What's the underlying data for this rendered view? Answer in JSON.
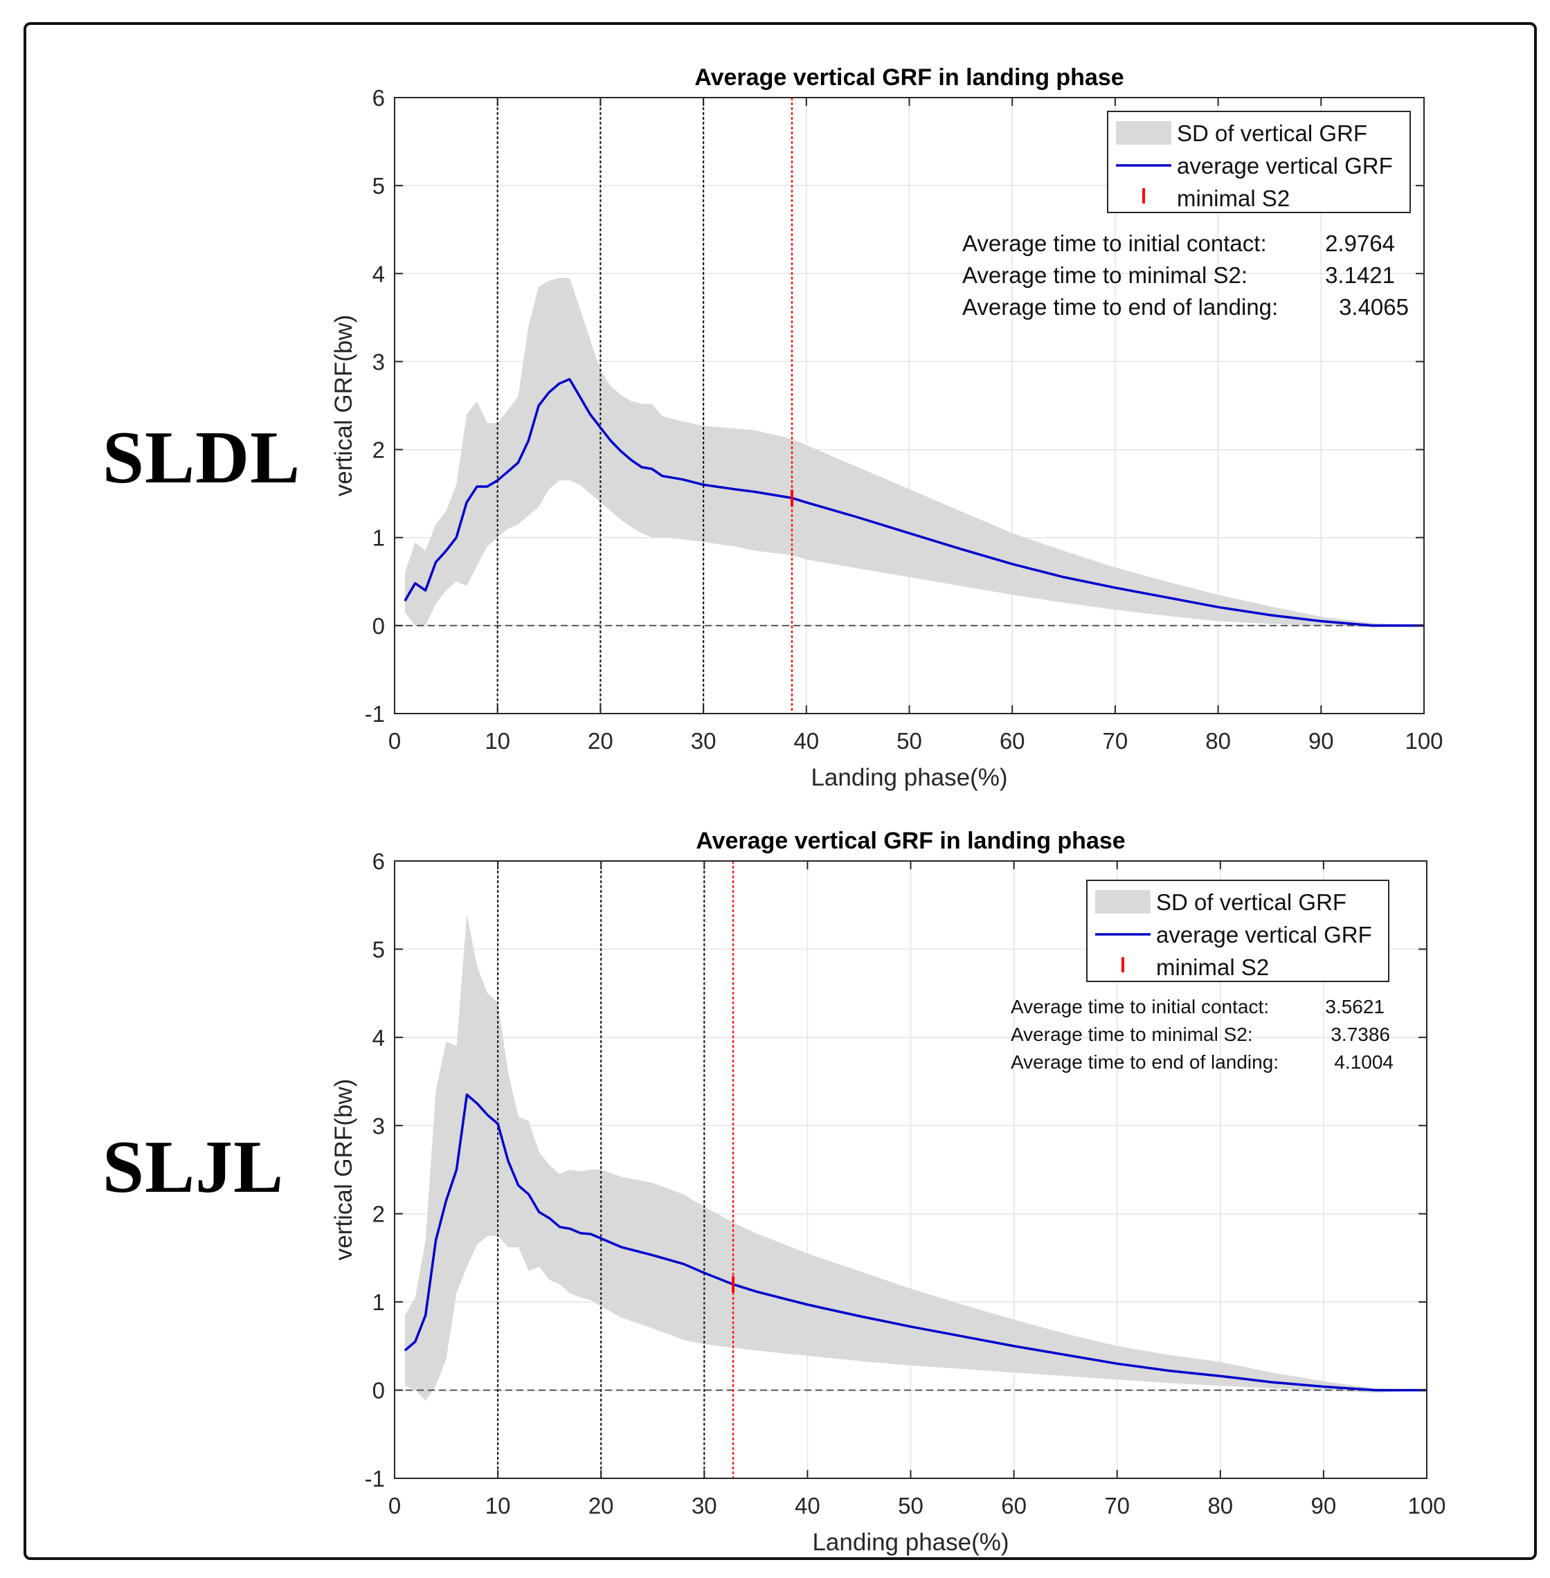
{
  "chart_data": [
    {
      "type": "area-line",
      "panel_label": "SLDL",
      "title": "Average vertical GRF in landing phase",
      "xlabel": "Landing phase(%)",
      "ylabel": "vertical GRF(bw)",
      "xlim": [
        0,
        100
      ],
      "ylim": [
        -1,
        6
      ],
      "xticks": [
        0,
        10,
        20,
        30,
        40,
        50,
        60,
        70,
        80,
        90,
        100
      ],
      "yticks": [
        -1,
        0,
        1,
        2,
        3,
        4,
        5,
        6
      ],
      "grid": true,
      "legend": {
        "position": "top-right",
        "entries": [
          "SD of vertical GRF",
          "average vertical GRF",
          "minimal S2"
        ]
      },
      "annotations": [
        {
          "label": "Average time to initial contact:",
          "value": "2.9764"
        },
        {
          "label": "Average time to minimal S2:",
          "value": "3.1421"
        },
        {
          "label": "Average time to end of landing:",
          "value": "3.4065"
        }
      ],
      "phase_lines": [
        10,
        20,
        30
      ],
      "minimal_s2": 38.6,
      "zero_line": 0,
      "series": [
        {
          "name": "average vertical GRF",
          "color": "#0000cc",
          "x": [
            1,
            2,
            3,
            4,
            5,
            6,
            7,
            8,
            9,
            10,
            11,
            12,
            13,
            14,
            15,
            16,
            17,
            18,
            19,
            20,
            21,
            22,
            23,
            24,
            25,
            26,
            28,
            30,
            33,
            35,
            38.6,
            40,
            45,
            50,
            55,
            60,
            65,
            70,
            75,
            80,
            85,
            90,
            95,
            100
          ],
          "y": [
            0.28,
            0.48,
            0.4,
            0.72,
            0.85,
            1.0,
            1.4,
            1.58,
            1.58,
            1.65,
            1.75,
            1.85,
            2.1,
            2.5,
            2.65,
            2.75,
            2.8,
            2.6,
            2.4,
            2.25,
            2.1,
            1.98,
            1.88,
            1.8,
            1.78,
            1.7,
            1.66,
            1.6,
            1.55,
            1.52,
            1.45,
            1.4,
            1.23,
            1.05,
            0.87,
            0.7,
            0.55,
            0.43,
            0.32,
            0.21,
            0.12,
            0.05,
            0.0,
            0.0
          ]
        },
        {
          "name": "SD of vertical GRF",
          "color": "#d9d9d9",
          "x": [
            1,
            2,
            3,
            4,
            5,
            6,
            7,
            8,
            9,
            10,
            11,
            12,
            13,
            14,
            15,
            16,
            17,
            18,
            19,
            20,
            21,
            22,
            23,
            24,
            25,
            26,
            28,
            30,
            33,
            35,
            38.6,
            40,
            45,
            50,
            55,
            60,
            65,
            70,
            75,
            80,
            85,
            90,
            95,
            100
          ],
          "upper": [
            0.6,
            0.95,
            0.85,
            1.15,
            1.3,
            1.6,
            2.4,
            2.55,
            2.3,
            2.3,
            2.45,
            2.6,
            3.4,
            3.85,
            3.92,
            3.95,
            3.95,
            3.6,
            3.25,
            2.9,
            2.72,
            2.62,
            2.55,
            2.52,
            2.52,
            2.38,
            2.32,
            2.27,
            2.24,
            2.22,
            2.12,
            2.05,
            1.8,
            1.55,
            1.3,
            1.05,
            0.85,
            0.66,
            0.5,
            0.35,
            0.22,
            0.1,
            0.03,
            0.0
          ],
          "lower": [
            0.15,
            0.0,
            0.0,
            0.25,
            0.4,
            0.5,
            0.45,
            0.68,
            0.9,
            1.0,
            1.1,
            1.15,
            1.25,
            1.35,
            1.55,
            1.65,
            1.65,
            1.6,
            1.5,
            1.4,
            1.3,
            1.2,
            1.12,
            1.05,
            1.0,
            1.0,
            0.98,
            0.95,
            0.9,
            0.85,
            0.8,
            0.75,
            0.65,
            0.55,
            0.45,
            0.35,
            0.26,
            0.18,
            0.11,
            0.05,
            0.02,
            0.0,
            -0.02,
            0.0
          ]
        }
      ]
    },
    {
      "type": "area-line",
      "panel_label": "SLJL",
      "title": "Average vertical GRF in landing phase",
      "xlabel": "Landing phase(%)",
      "ylabel": "vertical GRF(bw)",
      "xlim": [
        0,
        100
      ],
      "ylim": [
        -1,
        6
      ],
      "xticks": [
        0,
        10,
        20,
        30,
        40,
        50,
        60,
        70,
        80,
        90,
        100
      ],
      "yticks": [
        -1,
        0,
        1,
        2,
        3,
        4,
        5,
        6
      ],
      "grid": true,
      "legend": {
        "position": "top-right",
        "entries": [
          "SD of vertical GRF",
          "average vertical GRF",
          "minimal S2"
        ]
      },
      "annotations": [
        {
          "label": "Average time to initial contact:",
          "value": "3.5621"
        },
        {
          "label": "Average time to minimal S2:",
          "value": "3.7386"
        },
        {
          "label": "Average time to end of landing:",
          "value": "4.1004"
        }
      ],
      "phase_lines": [
        10,
        20,
        30
      ],
      "minimal_s2": 32.8,
      "zero_line": 0,
      "series": [
        {
          "name": "average vertical GRF",
          "color": "#0000cc",
          "x": [
            1,
            2,
            3,
            4,
            5,
            6,
            7,
            8,
            9,
            10,
            11,
            12,
            13,
            14,
            15,
            16,
            17,
            18,
            19,
            20,
            22,
            25,
            28,
            30,
            32.8,
            35,
            40,
            45,
            50,
            55,
            60,
            65,
            70,
            75,
            80,
            85,
            90,
            95,
            100
          ],
          "y": [
            0.45,
            0.55,
            0.85,
            1.7,
            2.15,
            2.5,
            3.35,
            3.25,
            3.12,
            3.02,
            2.6,
            2.32,
            2.22,
            2.02,
            1.95,
            1.85,
            1.83,
            1.78,
            1.77,
            1.72,
            1.62,
            1.53,
            1.43,
            1.33,
            1.2,
            1.12,
            0.97,
            0.84,
            0.72,
            0.61,
            0.5,
            0.4,
            0.3,
            0.22,
            0.16,
            0.09,
            0.04,
            0.0,
            0.0
          ]
        },
        {
          "name": "SD of vertical GRF",
          "color": "#d9d9d9",
          "x": [
            1,
            2,
            3,
            4,
            5,
            6,
            7,
            8,
            9,
            10,
            11,
            12,
            13,
            14,
            15,
            16,
            17,
            18,
            19,
            20,
            22,
            25,
            28,
            30,
            32.8,
            35,
            40,
            45,
            50,
            55,
            60,
            65,
            70,
            75,
            80,
            85,
            90,
            95,
            100
          ],
          "upper": [
            0.85,
            1.05,
            1.7,
            3.4,
            3.95,
            3.9,
            5.4,
            4.8,
            4.5,
            4.4,
            3.6,
            3.1,
            3.05,
            2.7,
            2.55,
            2.45,
            2.5,
            2.48,
            2.5,
            2.5,
            2.42,
            2.35,
            2.22,
            2.08,
            1.9,
            1.78,
            1.55,
            1.35,
            1.15,
            0.97,
            0.8,
            0.64,
            0.5,
            0.4,
            0.32,
            0.2,
            0.1,
            0.02,
            0.0
          ],
          "lower": [
            0.05,
            0.0,
            -0.12,
            0.05,
            0.35,
            1.1,
            1.4,
            1.65,
            1.75,
            1.75,
            1.62,
            1.62,
            1.35,
            1.4,
            1.25,
            1.2,
            1.1,
            1.05,
            1.02,
            0.95,
            0.82,
            0.7,
            0.57,
            0.52,
            0.48,
            0.45,
            0.39,
            0.33,
            0.28,
            0.24,
            0.2,
            0.16,
            0.12,
            0.08,
            0.05,
            0.02,
            0.0,
            -0.03,
            0.0
          ]
        }
      ]
    }
  ]
}
